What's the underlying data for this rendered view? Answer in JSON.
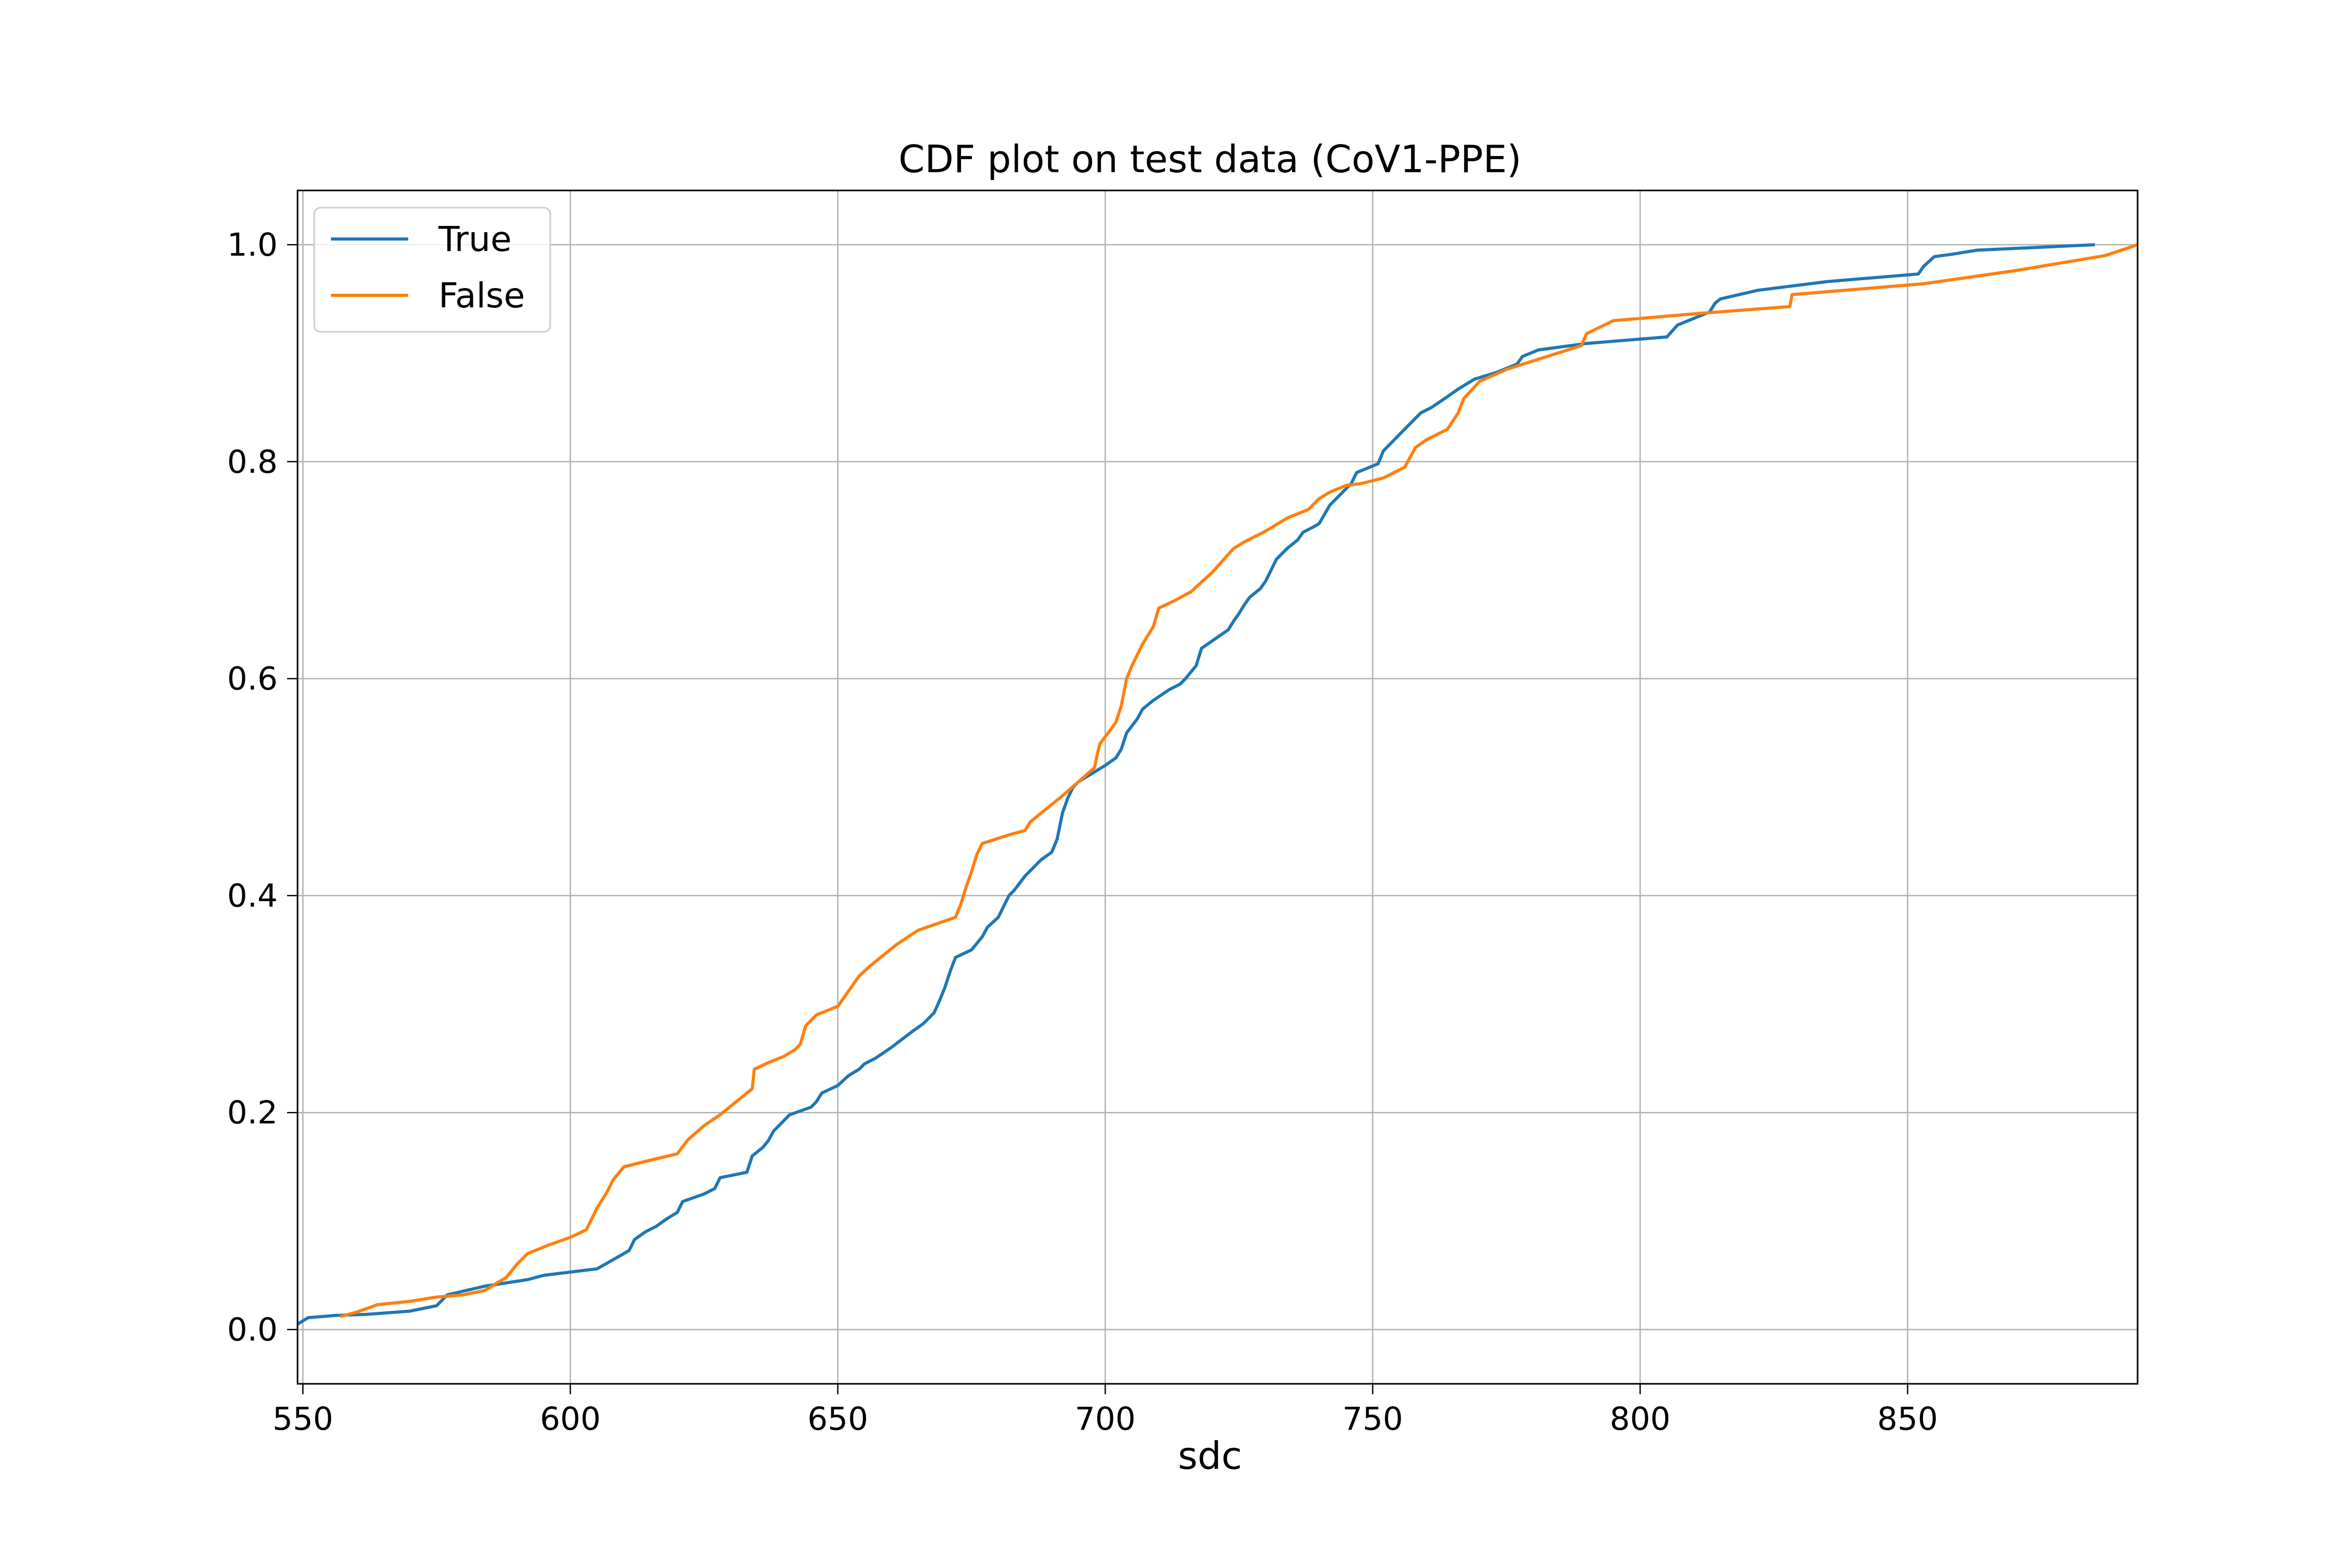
{
  "chart_data": {
    "type": "line",
    "title": "CDF plot on test data (CoV1-PPE)",
    "xlabel": "sdc",
    "ylabel": "",
    "xlim": [
      549,
      893
    ],
    "ylim": [
      -0.05,
      1.05
    ],
    "xticks": [
      550,
      600,
      650,
      700,
      750,
      800,
      850
    ],
    "xtick_labels": [
      "550",
      "600",
      "650",
      "700",
      "750",
      "800",
      "850"
    ],
    "yticks": [
      0.0,
      0.2,
      0.4,
      0.6,
      0.8,
      1.0
    ],
    "ytick_labels": [
      "0.0",
      "0.2",
      "0.4",
      "0.6",
      "0.8",
      "1.0"
    ],
    "grid": true,
    "legend_position": "upper-left",
    "series": [
      {
        "name": "True",
        "color": "#1f77b4",
        "x": [
          549,
          551,
          556,
          562,
          570,
          575,
          577,
          584,
          592,
          595,
          600,
          605,
          610,
          611,
          612,
          614,
          616,
          618,
          620,
          621,
          625,
          627,
          628,
          633,
          634,
          636,
          637,
          638,
          641,
          645,
          646,
          647,
          650,
          652,
          654,
          655,
          657,
          660,
          664,
          666,
          668,
          669,
          670,
          671,
          672,
          675,
          676,
          677,
          678,
          680,
          681,
          682,
          683,
          685,
          687,
          688,
          690,
          691,
          692,
          693,
          694,
          695,
          700,
          702,
          703,
          704,
          706,
          707,
          709,
          712,
          714,
          715,
          717,
          718,
          723,
          724,
          725,
          726,
          727,
          729,
          730,
          731,
          732,
          734,
          736,
          737,
          739,
          740,
          742,
          744,
          745,
          746,
          747,
          751,
          752,
          754,
          756,
          759,
          761,
          764,
          766,
          769,
          773,
          775,
          777,
          778,
          781,
          790,
          805,
          807,
          810,
          813,
          814,
          815,
          822,
          835,
          852,
          853,
          855,
          858,
          863,
          885
        ],
        "y": [
          0.005,
          0.011,
          0.013,
          0.014,
          0.017,
          0.022,
          0.032,
          0.04,
          0.046,
          0.05,
          0.053,
          0.056,
          0.07,
          0.073,
          0.083,
          0.09,
          0.095,
          0.102,
          0.108,
          0.118,
          0.125,
          0.13,
          0.14,
          0.145,
          0.16,
          0.168,
          0.174,
          0.183,
          0.198,
          0.205,
          0.21,
          0.218,
          0.225,
          0.234,
          0.24,
          0.245,
          0.25,
          0.26,
          0.275,
          0.282,
          0.292,
          0.303,
          0.315,
          0.33,
          0.343,
          0.35,
          0.356,
          0.362,
          0.371,
          0.38,
          0.39,
          0.4,
          0.405,
          0.418,
          0.428,
          0.433,
          0.44,
          0.452,
          0.476,
          0.49,
          0.5,
          0.505,
          0.52,
          0.527,
          0.535,
          0.55,
          0.563,
          0.572,
          0.58,
          0.59,
          0.595,
          0.6,
          0.612,
          0.628,
          0.645,
          0.653,
          0.66,
          0.668,
          0.675,
          0.683,
          0.69,
          0.7,
          0.71,
          0.72,
          0.728,
          0.735,
          0.74,
          0.743,
          0.76,
          0.77,
          0.775,
          0.78,
          0.79,
          0.798,
          0.81,
          0.82,
          0.83,
          0.845,
          0.85,
          0.86,
          0.867,
          0.876,
          0.882,
          0.886,
          0.89,
          0.897,
          0.903,
          0.909,
          0.915,
          0.926,
          0.932,
          0.938,
          0.946,
          0.95,
          0.958,
          0.966,
          0.973,
          0.98,
          0.989,
          0.991,
          0.995,
          1.0
        ]
      },
      {
        "name": "False",
        "color": "#ff7f0e",
        "x": [
          557,
          560,
          564,
          570,
          575,
          580,
          584,
          588,
          590,
          592,
          596,
          600,
          603,
          605,
          607,
          608,
          610,
          614,
          620,
          622,
          625,
          628,
          631,
          634,
          634.4,
          637,
          640,
          642,
          643,
          644,
          646,
          650,
          652,
          654,
          656,
          658,
          661,
          665,
          672,
          673,
          674,
          675,
          676,
          677,
          682,
          685,
          686,
          688,
          692,
          695,
          698,
          698.5,
          699,
          701,
          702,
          703,
          704,
          705,
          707,
          709,
          710,
          713,
          716,
          720,
          724,
          726,
          730,
          734,
          738,
          740,
          742,
          745,
          748,
          752,
          756,
          758,
          760,
          764,
          766,
          767,
          770,
          775,
          789,
          790,
          795,
          812,
          828,
          828.4,
          853,
          870,
          887,
          893
        ],
        "y": [
          0.012,
          0.016,
          0.023,
          0.026,
          0.03,
          0.032,
          0.036,
          0.048,
          0.06,
          0.07,
          0.078,
          0.085,
          0.092,
          0.112,
          0.128,
          0.138,
          0.15,
          0.155,
          0.162,
          0.175,
          0.188,
          0.198,
          0.21,
          0.222,
          0.24,
          0.246,
          0.252,
          0.258,
          0.263,
          0.28,
          0.29,
          0.298,
          0.312,
          0.326,
          0.335,
          0.343,
          0.355,
          0.368,
          0.38,
          0.392,
          0.408,
          0.422,
          0.438,
          0.448,
          0.456,
          0.46,
          0.468,
          0.476,
          0.492,
          0.505,
          0.518,
          0.53,
          0.54,
          0.553,
          0.56,
          0.575,
          0.6,
          0.612,
          0.632,
          0.648,
          0.665,
          0.672,
          0.68,
          0.698,
          0.72,
          0.726,
          0.736,
          0.748,
          0.756,
          0.766,
          0.772,
          0.778,
          0.78,
          0.785,
          0.795,
          0.813,
          0.82,
          0.83,
          0.845,
          0.858,
          0.874,
          0.885,
          0.907,
          0.918,
          0.93,
          0.937,
          0.943,
          0.954,
          0.964,
          0.976,
          0.99,
          1.0
        ]
      }
    ]
  }
}
